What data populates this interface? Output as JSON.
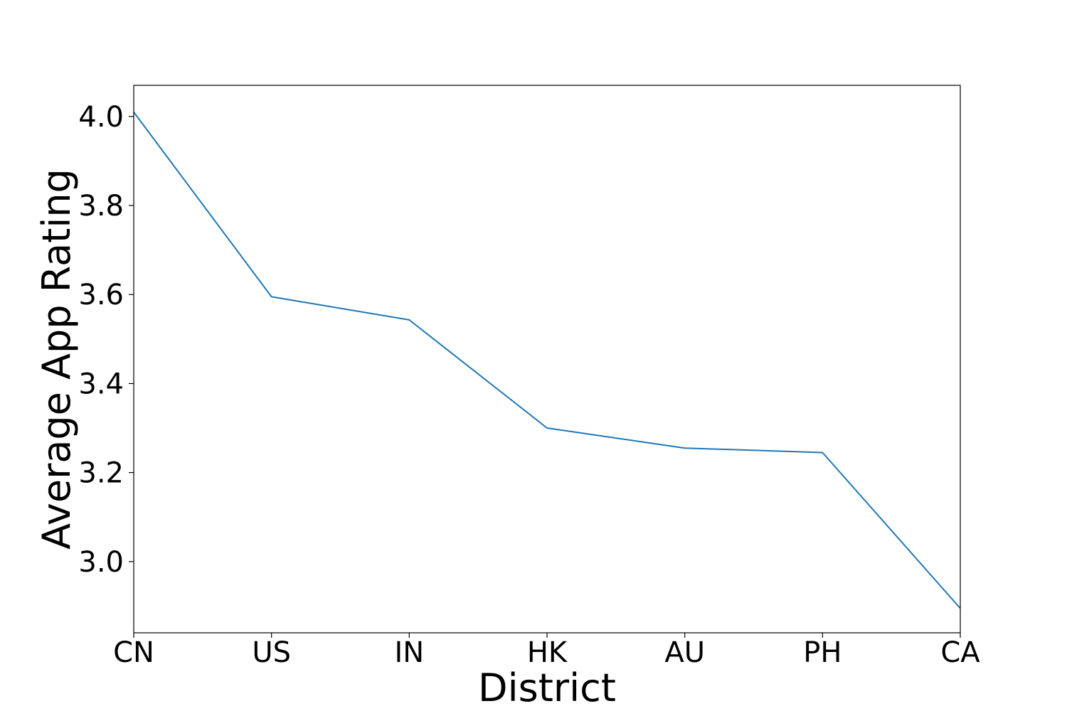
{
  "chart_data": {
    "type": "line",
    "title": "",
    "xlabel": "District",
    "ylabel": "Average App Rating",
    "categories": [
      "CN",
      "US",
      "IN",
      "HK",
      "AU",
      "PH",
      "CA"
    ],
    "series": [
      {
        "values": [
          4.01,
          3.595,
          3.543,
          3.3,
          3.255,
          3.245,
          2.895
        ],
        "color": "#1f77b4"
      }
    ],
    "ylim": [
      2.84,
      4.07
    ],
    "yticks": [
      3.0,
      3.2,
      3.4,
      3.6,
      3.8,
      4.0
    ],
    "ytick_labels": [
      "3.0",
      "3.2",
      "3.4",
      "3.6",
      "3.8",
      "4.0"
    ],
    "grid": false,
    "legend": "none"
  }
}
